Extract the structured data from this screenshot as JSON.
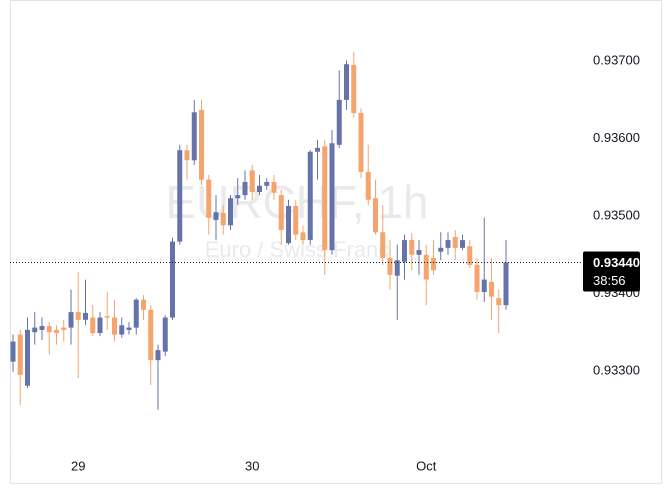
{
  "chart_data": {
    "type": "candlestick",
    "title": "EURCHF, 1h",
    "subtitle": "Euro / Swiss Franc",
    "categories": [
      null,
      null,
      null,
      null,
      null,
      null,
      null,
      null,
      null,
      "29",
      null,
      null,
      null,
      null,
      null,
      null,
      null,
      null,
      null,
      null,
      null,
      null,
      null,
      null,
      null,
      null,
      null,
      null,
      null,
      null,
      null,
      null,
      null,
      "30",
      null,
      null,
      null,
      null,
      null,
      null,
      null,
      null,
      null,
      null,
      null,
      null,
      null,
      null,
      null,
      null,
      null,
      null,
      null,
      null,
      null,
      null,
      null,
      "Oct",
      null,
      null,
      null,
      null,
      null,
      null,
      null,
      null,
      null,
      null,
      null
    ],
    "open": [
      0.93312,
      0.93347,
      0.93281,
      0.9335,
      0.93353,
      0.93358,
      0.93353,
      0.93356,
      0.93356,
      0.93376,
      0.93366,
      0.93369,
      0.93349,
      0.93371,
      0.93369,
      0.93347,
      0.93353,
      0.93356,
      0.93392,
      0.93379,
      0.93314,
      0.93325,
      0.93369,
      0.93467,
      0.93585,
      0.93572,
      0.93637,
      0.93547,
      0.93495,
      0.93504,
      0.93488,
      0.93523,
      0.93527,
      0.93559,
      0.93531,
      0.93539,
      0.93544,
      0.93527,
      0.93465,
      0.93513,
      0.93479,
      0.93469,
      0.93583,
      0.9359,
      0.93456,
      0.93592,
      0.9365,
      0.93695,
      0.93633,
      0.93557,
      0.93523,
      0.93479,
      0.93446,
      0.93423,
      0.93441,
      0.93469,
      0.9345,
      0.9345,
      0.93446,
      0.93454,
      0.93459,
      0.93473,
      0.93459,
      0.93461,
      0.93437,
      0.93402,
      0.93415,
      0.93394,
      0.93385
    ],
    "high": [
      0.93347,
      0.93353,
      0.93369,
      0.93376,
      0.93369,
      0.93363,
      0.93359,
      0.93366,
      0.93405,
      0.93428,
      0.93418,
      0.93385,
      0.93376,
      0.93402,
      0.93392,
      0.93369,
      0.93363,
      0.93394,
      0.93398,
      0.93385,
      0.93334,
      0.93372,
      0.93472,
      0.93592,
      0.93592,
      0.9365,
      0.9365,
      0.93553,
      0.93527,
      0.93514,
      0.93527,
      0.93549,
      0.93559,
      0.93566,
      0.93553,
      0.93549,
      0.93553,
      0.93534,
      0.93521,
      0.93521,
      0.93488,
      0.93585,
      0.93598,
      0.93598,
      0.93611,
      0.93688,
      0.93701,
      0.93712,
      0.93639,
      0.93592,
      0.93547,
      0.93514,
      0.93469,
      0.93463,
      0.93476,
      0.93478,
      0.93469,
      0.93463,
      0.93469,
      0.93479,
      0.93479,
      0.93482,
      0.93476,
      0.93469,
      0.93446,
      0.93498,
      0.93446,
      0.93405,
      0.93469
    ],
    "low": [
      0.93299,
      0.93256,
      0.93278,
      0.93334,
      0.9334,
      0.93321,
      0.93334,
      0.93338,
      0.93334,
      0.93291,
      0.93359,
      0.93345,
      0.93345,
      0.93353,
      0.93338,
      0.93343,
      0.93347,
      0.93347,
      0.93366,
      0.93282,
      0.9325,
      0.93319,
      0.93366,
      0.93463,
      0.93547,
      0.93566,
      0.9354,
      0.93476,
      0.93469,
      0.93476,
      0.93482,
      0.93514,
      0.93521,
      0.93521,
      0.93527,
      0.93534,
      0.93521,
      0.93463,
      0.93463,
      0.93469,
      0.93463,
      0.93463,
      0.93547,
      0.93424,
      0.9345,
      0.93588,
      0.93637,
      0.93627,
      0.93549,
      0.93514,
      0.93476,
      0.93437,
      0.93405,
      0.93366,
      0.93418,
      0.9343,
      0.93424,
      0.93385,
      0.93424,
      0.93443,
      0.9345,
      0.93443,
      0.93456,
      0.93433,
      0.93392,
      0.93389,
      0.93366,
      0.93349,
      0.93379
    ],
    "close": [
      0.93338,
      0.93295,
      0.93353,
      0.93356,
      0.93358,
      0.9335,
      0.93349,
      0.93353,
      0.93376,
      0.93366,
      0.93375,
      0.93349,
      0.93369,
      0.93369,
      0.93347,
      0.93359,
      0.93356,
      0.93392,
      0.93379,
      0.93314,
      0.93327,
      0.93369,
      0.93467,
      0.93585,
      0.93572,
      0.93634,
      0.93547,
      0.93498,
      0.93505,
      0.93488,
      0.93523,
      0.93527,
      0.93544,
      0.93531,
      0.93539,
      0.93544,
      0.9353,
      0.93482,
      0.93513,
      0.93476,
      0.93469,
      0.93583,
      0.93588,
      0.93456,
      0.93594,
      0.9365,
      0.93696,
      0.93633,
      0.93557,
      0.93521,
      0.93479,
      0.93446,
      0.93424,
      0.93443,
      0.93469,
      0.9345,
      0.93456,
      0.93418,
      0.9343,
      0.93459,
      0.93469,
      0.93459,
      0.93469,
      0.93437,
      0.93402,
      0.93418,
      0.93396,
      0.93385,
      0.9344
    ],
    "up_color": "#6673a8",
    "down_color": "#f5a46e",
    "ylim": [
      0.93198,
      0.93766
    ],
    "yticks": [
      {
        "value": 0.937,
        "label": "0.93700"
      },
      {
        "value": 0.936,
        "label": "0.93600"
      },
      {
        "value": 0.935,
        "label": "0.93500"
      },
      {
        "value": 0.934,
        "label": "0.93400"
      },
      {
        "value": 0.933,
        "label": "0.93300"
      }
    ],
    "last_price": {
      "value": 0.9344,
      "label": "0.93440"
    },
    "countdown": "38:56",
    "grid": false
  }
}
